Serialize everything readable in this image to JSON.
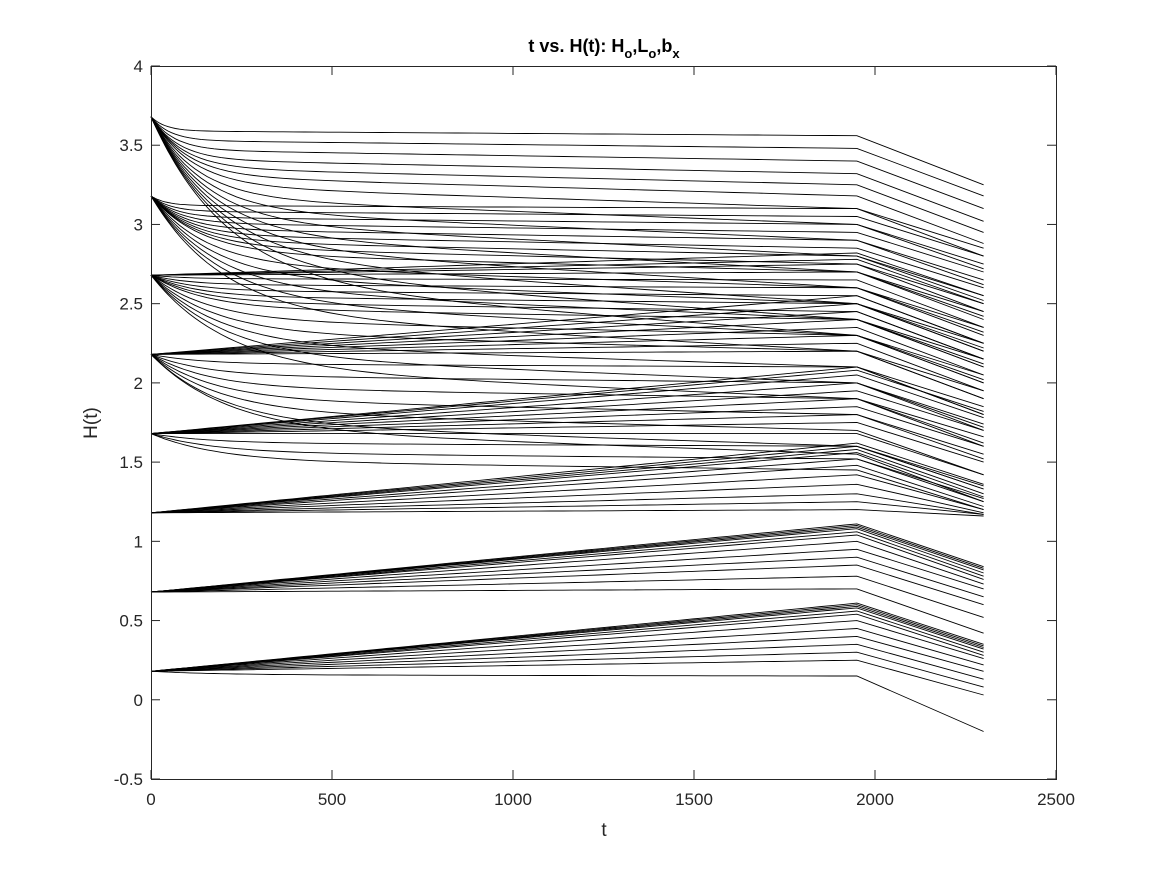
{
  "chart_data": {
    "type": "line",
    "title": "t vs. H(t): H",
    "title_parts": [
      "t vs. H(t): H",
      "o",
      ",L",
      "o",
      ",b",
      "x"
    ],
    "xlabel": "t",
    "ylabel": "H(t)",
    "xlim": [
      0,
      2500
    ],
    "ylim": [
      -0.5,
      4
    ],
    "xticks": [
      0,
      500,
      1000,
      1500,
      2000,
      2500
    ],
    "xtick_labels": [
      "0",
      "500",
      "1000",
      "1500",
      "2000",
      "2500"
    ],
    "yticks": [
      -0.5,
      0,
      0.5,
      1,
      1.5,
      2,
      2.5,
      3,
      3.5,
      4
    ],
    "ytick_labels": [
      "-0.5",
      "0",
      "0.5",
      "1",
      "1.5",
      "2",
      "2.5",
      "3",
      "3.5",
      "4"
    ],
    "grid": false,
    "legend": false,
    "line_color": "#000000",
    "segment_times": [
      0,
      1950,
      2300
    ],
    "start_levels": [
      0.18,
      0.68,
      1.18,
      1.68,
      2.18,
      2.68,
      3.18,
      3.68
    ],
    "series": [
      {
        "start": 0.18,
        "rise_to": [
          0.61,
          0.6,
          0.59,
          0.58,
          0.56,
          0.54,
          0.5,
          0.45,
          0.4,
          0.35,
          0.3,
          0.25,
          0.15
        ],
        "end_at_2300": [
          0.35,
          0.34,
          0.33,
          0.32,
          0.3,
          0.28,
          0.26,
          0.22,
          0.18,
          0.13,
          0.08,
          0.03,
          -0.2
        ]
      },
      {
        "start": 0.68,
        "rise_to": [
          1.11,
          1.1,
          1.09,
          1.08,
          1.06,
          1.04,
          1.0,
          0.95,
          0.9,
          0.85,
          0.78,
          0.7
        ],
        "end_at_2300": [
          0.84,
          0.83,
          0.82,
          0.8,
          0.78,
          0.76,
          0.73,
          0.7,
          0.65,
          0.6,
          0.52,
          0.42
        ]
      },
      {
        "start": 1.18,
        "rise_to": [
          1.62,
          1.6,
          1.58,
          1.56,
          1.52,
          1.48,
          1.42,
          1.36,
          1.3,
          1.25,
          1.2
        ],
        "end_at_2300": [
          1.36,
          1.33,
          1.3,
          1.28,
          1.25,
          1.22,
          1.2,
          1.18,
          1.17,
          1.17,
          1.16
        ]
      },
      {
        "start": 1.68,
        "rise_to": [
          2.1,
          2.08,
          2.05,
          2.0,
          1.95,
          1.9,
          1.85,
          1.8,
          1.75,
          1.68,
          1.6,
          1.52,
          1.45
        ],
        "end_at_2300": [
          1.85,
          1.82,
          1.78,
          1.74,
          1.7,
          1.66,
          1.6,
          1.55,
          1.5,
          1.42,
          1.35,
          1.27,
          1.2
        ]
      },
      {
        "start": 2.18,
        "rise_to": [
          2.55,
          2.5,
          2.45,
          2.4,
          2.35,
          2.3,
          2.25,
          2.2,
          2.1,
          2.0,
          1.9,
          1.8,
          1.7,
          1.6,
          1.55
        ],
        "end_at_2300": [
          2.25,
          2.2,
          2.15,
          2.1,
          2.05,
          2.0,
          1.95,
          1.9,
          1.8,
          1.72,
          1.62,
          1.52,
          1.42,
          1.33,
          1.25
        ]
      },
      {
        "start": 2.68,
        "rise_to": [
          2.82,
          2.78,
          2.75,
          2.7,
          2.65,
          2.6,
          2.55,
          2.5,
          2.45,
          2.4,
          2.3,
          2.2,
          2.1,
          2.0,
          1.9
        ],
        "end_at_2300": [
          2.55,
          2.5,
          2.45,
          2.4,
          2.35,
          2.3,
          2.25,
          2.2,
          2.15,
          2.1,
          2.0,
          1.9,
          1.8,
          1.7,
          1.6
        ]
      },
      {
        "start": 3.18,
        "rise_to": [
          3.1,
          3.05,
          3.0,
          2.95,
          2.9,
          2.85,
          2.8,
          2.75,
          2.7,
          2.6,
          2.5,
          2.4,
          2.3,
          2.2
        ],
        "end_at_2300": [
          2.85,
          2.8,
          2.75,
          2.7,
          2.65,
          2.6,
          2.55,
          2.5,
          2.45,
          2.35,
          2.25,
          2.15,
          2.05,
          1.95
        ]
      },
      {
        "start": 3.68,
        "rise_to": [
          3.56,
          3.48,
          3.4,
          3.32,
          3.25,
          3.18,
          3.1,
          3.0,
          2.9,
          2.8,
          2.7,
          2.6,
          2.5,
          2.4,
          2.3
        ],
        "end_at_2300": [
          3.25,
          3.18,
          3.1,
          3.02,
          2.95,
          2.88,
          2.8,
          2.72,
          2.62,
          2.52,
          2.42,
          2.32,
          2.22,
          2.12,
          2.02
        ]
      }
    ]
  }
}
